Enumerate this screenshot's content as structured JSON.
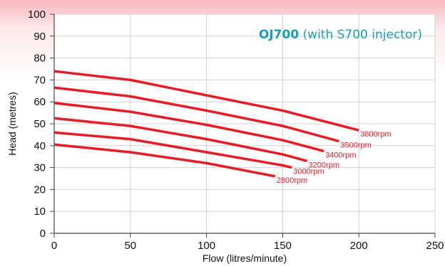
{
  "chart_data": {
    "type": "line",
    "title_bold": "OJ700",
    "title_rest": " (with S700 injector)",
    "xlabel": "Flow (litres/minute)",
    "ylabel": "Head (metres)",
    "xlim": [
      0,
      250
    ],
    "ylim": [
      0,
      100
    ],
    "xticks": [
      0,
      50,
      100,
      150,
      200,
      250
    ],
    "yticks": [
      0,
      10,
      20,
      30,
      40,
      50,
      60,
      70,
      80,
      90,
      100
    ],
    "grid": true,
    "series": [
      {
        "name": "3800rpm",
        "x": [
          0,
          50,
          100,
          150,
          200
        ],
        "y": [
          74,
          70,
          63,
          56,
          47
        ]
      },
      {
        "name": "3500rpm",
        "x": [
          0,
          50,
          100,
          150,
          187
        ],
        "y": [
          66.5,
          62.5,
          56,
          49,
          42
        ]
      },
      {
        "name": "3400rpm",
        "x": [
          0,
          50,
          100,
          150,
          177
        ],
        "y": [
          59.5,
          55.5,
          49.5,
          42.5,
          37.5
        ]
      },
      {
        "name": "3200rpm",
        "x": [
          0,
          50,
          100,
          150,
          166
        ],
        "y": [
          52.5,
          49,
          43,
          36,
          33
        ]
      },
      {
        "name": "3000rpm",
        "x": [
          0,
          50,
          100,
          150,
          156
        ],
        "y": [
          46,
          43,
          37,
          31,
          30
        ]
      },
      {
        "name": "2800rpm",
        "x": [
          0,
          50,
          100,
          145
        ],
        "y": [
          40.5,
          37,
          32,
          26
        ]
      }
    ]
  },
  "colors": {
    "curve": "#e31e26",
    "title_bold": "#1a9fb5",
    "title_rest": "#1a9fb5",
    "grid": "#d0d0d0",
    "axis": "#444444"
  }
}
